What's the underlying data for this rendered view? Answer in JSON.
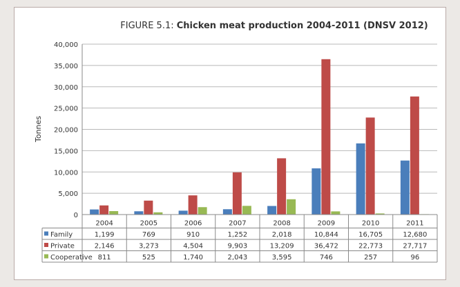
{
  "chart_data": {
    "type": "bar",
    "title_prefix": "FIGURE 5.1:",
    "title": "Chicken meat production 2004-2011 (DNSV 2012)",
    "ylabel": "Tonnes",
    "xlabel": "",
    "ylim": [
      0,
      40000
    ],
    "yticks": [
      "0",
      "5,000",
      "10,000",
      "15,000",
      "20,000",
      "25,000",
      "30,000",
      "35,000",
      "40,000"
    ],
    "grid": true,
    "legend": "data-table",
    "categories": [
      "2004",
      "2005",
      "2006",
      "2007",
      "2008",
      "2009",
      "2010",
      "2011"
    ],
    "series": [
      {
        "name": "Family",
        "color": "#4a7ebb",
        "values": [
          1199,
          769,
          910,
          1252,
          2018,
          10844,
          16705,
          12680
        ],
        "labels": [
          "1,199",
          "769",
          "910",
          "1,252",
          "2,018",
          "10,844",
          "16,705",
          "12,680"
        ]
      },
      {
        "name": "Private",
        "color": "#be4b48",
        "values": [
          2146,
          3273,
          4504,
          9903,
          13209,
          36472,
          22773,
          27717
        ],
        "labels": [
          "2,146",
          "3,273",
          "4,504",
          "9,903",
          "13,209",
          "36,472",
          "22,773",
          "27,717"
        ]
      },
      {
        "name": "Cooperative",
        "color": "#98b954",
        "values": [
          811,
          525,
          1740,
          2043,
          3595,
          746,
          257,
          96
        ],
        "labels": [
          "811",
          "525",
          "1,740",
          "2,043",
          "3,595",
          "746",
          "257",
          "96"
        ]
      }
    ]
  }
}
